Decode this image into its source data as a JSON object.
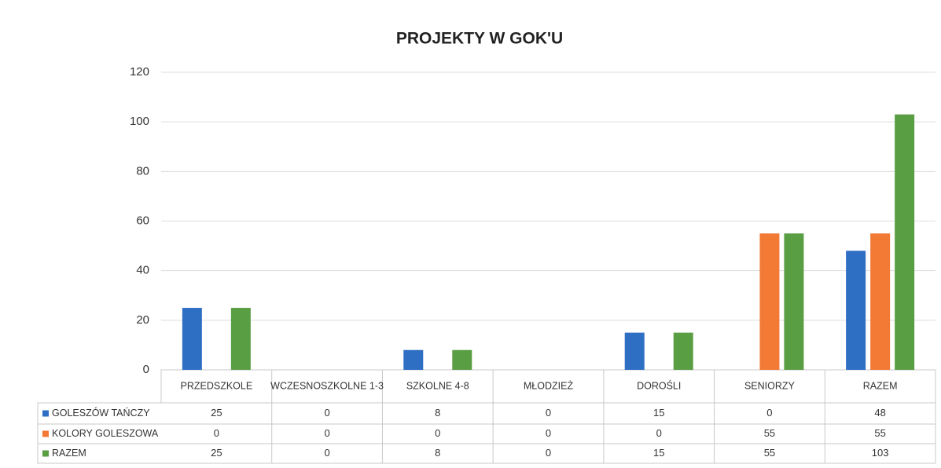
{
  "chart_data": {
    "type": "bar",
    "title": "PROJEKTY W GOK'U",
    "categories": [
      "PRZEDSZKOLE",
      "WCZESNOSZKOLNE 1-3",
      "SZKOLNE 4-8",
      "MŁODZIEŻ",
      "DOROŚLI",
      "SENIORZY",
      "RAZEM"
    ],
    "series": [
      {
        "name": "GOLESZÓW TAŃCZY",
        "color": "#2e6fc4",
        "values": [
          25,
          0,
          8,
          0,
          15,
          0,
          48
        ]
      },
      {
        "name": "KOLORY GOLESZOWA",
        "color": "#f27a35",
        "values": [
          0,
          0,
          0,
          0,
          0,
          55,
          55
        ]
      },
      {
        "name": "RAZEM",
        "color": "#5a9e44",
        "values": [
          25,
          0,
          8,
          0,
          15,
          55,
          103
        ]
      }
    ],
    "ylim": [
      0,
      120
    ],
    "yticks": [
      0,
      20,
      40,
      60,
      80,
      100,
      120
    ],
    "grid": true,
    "data_table": true
  }
}
